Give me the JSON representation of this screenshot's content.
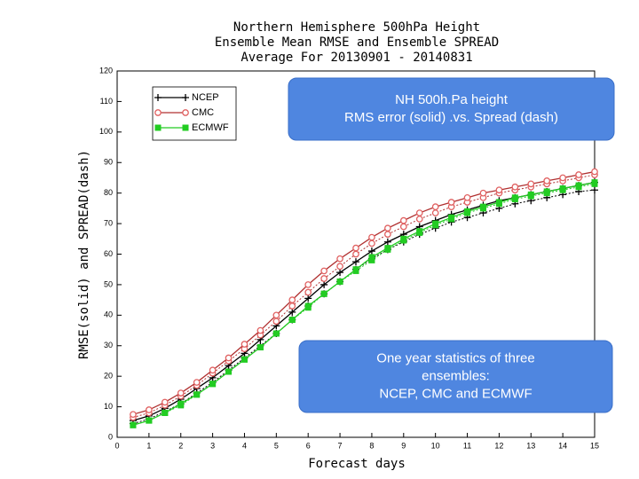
{
  "chart_data": {
    "type": "line",
    "title": [
      "Northern Hemisphere 500hPa Height",
      "Ensemble Mean RMSE and Ensemble SPREAD",
      "Average For 20130901 - 20140831"
    ],
    "xlabel": "Forecast days",
    "ylabel": "RMSE(solid) and SPREAD(dash)",
    "xlim": [
      0,
      15
    ],
    "ylim": [
      0,
      120
    ],
    "xticks": [
      0,
      1,
      2,
      3,
      4,
      5,
      6,
      7,
      8,
      9,
      10,
      11,
      12,
      13,
      14,
      15
    ],
    "yticks": [
      0,
      10,
      20,
      30,
      40,
      50,
      60,
      70,
      80,
      90,
      100,
      110,
      120
    ],
    "x": [
      0.5,
      1,
      1.5,
      2,
      2.5,
      3,
      3.5,
      4,
      4.5,
      5,
      5.5,
      6,
      6.5,
      7,
      7.5,
      8,
      8.5,
      9,
      9.5,
      10,
      10.5,
      11,
      11.5,
      12,
      12.5,
      13,
      13.5,
      14,
      14.5,
      15
    ],
    "series": [
      {
        "name": "NCEP",
        "color": "#000000",
        "marker": "plus",
        "rmse": [
          5.5,
          7,
          9.5,
          12.5,
          16,
          19.5,
          23.5,
          27.5,
          32,
          36.5,
          41,
          45.5,
          50,
          54,
          57.5,
          61,
          64,
          66.5,
          69,
          71,
          73,
          74.5,
          76,
          77.5,
          78.5,
          79.5,
          80.5,
          81.5,
          82.5,
          83.5
        ],
        "spread": [
          4.5,
          6,
          8.5,
          11,
          14.5,
          18,
          22,
          26,
          30,
          34,
          38.5,
          43,
          47,
          51,
          55,
          58.5,
          61.5,
          64,
          66.5,
          68.5,
          70.5,
          72,
          73.5,
          75,
          76.5,
          77.5,
          78.5,
          79.5,
          80.5,
          81
        ]
      },
      {
        "name": "CMC",
        "color": "#b03030",
        "marker": "circle",
        "rmse": [
          7.5,
          9,
          11.5,
          14.5,
          18,
          22,
          26,
          30.5,
          35,
          40,
          45,
          50,
          54.5,
          58.5,
          62,
          65.5,
          68.5,
          71,
          73.5,
          75.5,
          77,
          78.5,
          80,
          81,
          82,
          83,
          84,
          85,
          86,
          87
        ],
        "spread": [
          6.5,
          8,
          10.5,
          13.5,
          17,
          21,
          25,
          29,
          33.5,
          38,
          43,
          47.5,
          52,
          56,
          60,
          63.5,
          66.5,
          69,
          71.5,
          73.5,
          75.5,
          77,
          78.5,
          80,
          81,
          82,
          83,
          84,
          85,
          86
        ]
      },
      {
        "name": "ECMWF",
        "color": "#22cc22",
        "marker": "square",
        "rmse": [
          4,
          5.5,
          8,
          11,
          14,
          17.5,
          21.5,
          25.5,
          29.5,
          34,
          38.5,
          43,
          47,
          51,
          55,
          59,
          62,
          65,
          67.5,
          70,
          72,
          74,
          75.5,
          77,
          78.5,
          79.5,
          80.5,
          81.5,
          82.5,
          83.5
        ],
        "spread": [
          4,
          5.5,
          8,
          10.5,
          14,
          17.5,
          21.5,
          25.5,
          29.5,
          34,
          38.5,
          42.5,
          47,
          51,
          54.5,
          58,
          61.5,
          64.5,
          67,
          69.5,
          71.5,
          73.5,
          75,
          76.5,
          78,
          79,
          80,
          81,
          82,
          83
        ]
      }
    ],
    "annotations": [
      {
        "lines": [
          "NH 500h.Pa height",
          "RMS error (solid) .vs. Spread (dash)"
        ]
      },
      {
        "lines": [
          "One year statistics of three",
          "ensembles:",
          "NCEP, CMC and ECMWF"
        ]
      }
    ]
  }
}
